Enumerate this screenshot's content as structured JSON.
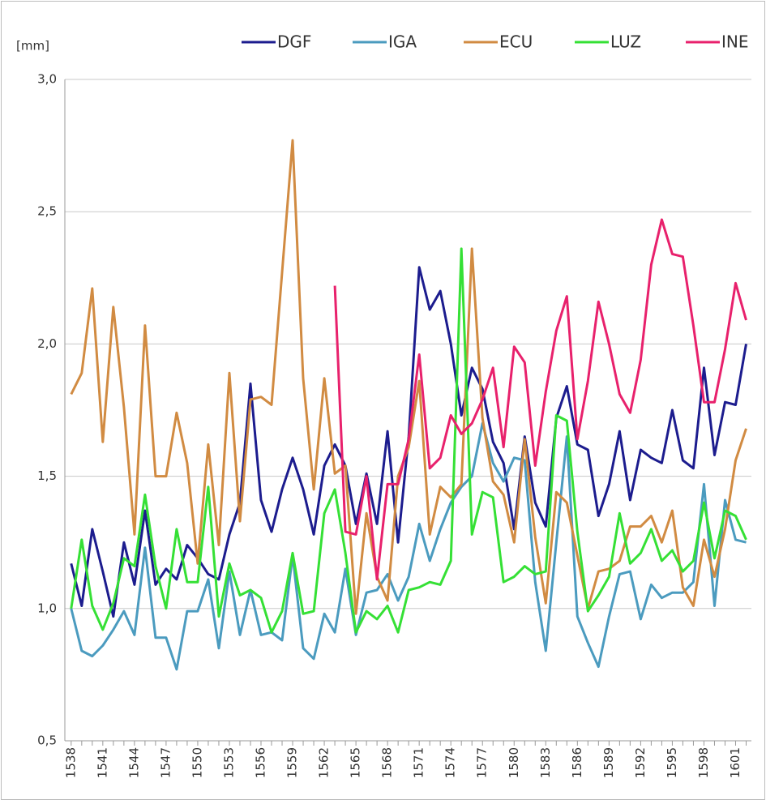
{
  "chart_data": {
    "type": "line",
    "ylabel": "[mm]",
    "x": [
      1538,
      1539,
      1540,
      1541,
      1542,
      1543,
      1544,
      1545,
      1546,
      1547,
      1548,
      1549,
      1550,
      1551,
      1552,
      1553,
      1554,
      1555,
      1556,
      1557,
      1558,
      1559,
      1560,
      1561,
      1562,
      1563,
      1564,
      1565,
      1566,
      1567,
      1568,
      1569,
      1570,
      1571,
      1572,
      1573,
      1574,
      1575,
      1576,
      1577,
      1578,
      1579,
      1580,
      1581,
      1582,
      1583,
      1584,
      1585,
      1586,
      1587,
      1588,
      1589,
      1590,
      1591,
      1592,
      1593,
      1594,
      1595,
      1596,
      1597,
      1598,
      1599,
      1600,
      1601,
      1602
    ],
    "series": [
      {
        "name": "DGF",
        "color": "#1c1c8e",
        "values": [
          1.17,
          1.01,
          1.3,
          1.14,
          0.97,
          1.25,
          1.09,
          1.37,
          1.09,
          1.15,
          1.11,
          1.24,
          1.19,
          1.13,
          1.11,
          1.28,
          1.4,
          1.85,
          1.41,
          1.29,
          1.45,
          1.57,
          1.45,
          1.28,
          1.54,
          1.62,
          1.54,
          1.32,
          1.51,
          1.32,
          1.67,
          1.25,
          1.65,
          2.29,
          2.13,
          2.2,
          2.0,
          1.73,
          1.91,
          1.83,
          1.63,
          1.55,
          1.3,
          1.65,
          1.4,
          1.31,
          1.72,
          1.84,
          1.62,
          1.6,
          1.35,
          1.47,
          1.67,
          1.41,
          1.6,
          1.57,
          1.55,
          1.75,
          1.56,
          1.53,
          1.91,
          1.58,
          1.78,
          1.77,
          2.0
        ]
      },
      {
        "name": "IGA",
        "color": "#4b9bbf",
        "values": [
          1.0,
          0.84,
          0.82,
          0.86,
          0.92,
          0.99,
          0.9,
          1.23,
          0.89,
          0.89,
          0.77,
          0.99,
          0.99,
          1.11,
          0.85,
          1.14,
          0.9,
          1.07,
          0.9,
          0.91,
          0.88,
          1.2,
          0.85,
          0.81,
          0.98,
          0.91,
          1.15,
          0.9,
          1.06,
          1.07,
          1.13,
          1.03,
          1.12,
          1.32,
          1.18,
          1.3,
          1.4,
          1.46,
          1.5,
          1.7,
          1.55,
          1.48,
          1.57,
          1.56,
          1.1,
          0.84,
          1.25,
          1.65,
          0.97,
          0.87,
          0.78,
          0.97,
          1.13,
          1.14,
          0.96,
          1.09,
          1.04,
          1.06,
          1.06,
          1.1,
          1.47,
          1.01,
          1.41,
          1.26,
          1.25
        ]
      },
      {
        "name": "ECU",
        "color": "#d18b42",
        "values": [
          1.81,
          1.89,
          2.21,
          1.63,
          2.14,
          1.76,
          1.28,
          2.07,
          1.5,
          1.5,
          1.74,
          1.55,
          1.17,
          1.62,
          1.24,
          1.89,
          1.33,
          1.79,
          1.8,
          1.77,
          2.27,
          2.77,
          1.87,
          1.45,
          1.87,
          1.51,
          1.54,
          0.98,
          1.36,
          1.12,
          1.03,
          1.5,
          1.61,
          1.86,
          1.28,
          1.46,
          1.42,
          1.47,
          2.36,
          1.72,
          1.48,
          1.43,
          1.25,
          1.64,
          1.27,
          1.02,
          1.44,
          1.4,
          1.2,
          1.0,
          1.14,
          1.15,
          1.18,
          1.31,
          1.31,
          1.35,
          1.25,
          1.37,
          1.08,
          1.01,
          1.26,
          1.12,
          1.3,
          1.56,
          1.68
        ]
      },
      {
        "name": "LUZ",
        "color": "#35e035",
        "values": [
          1.0,
          1.26,
          1.01,
          0.92,
          1.02,
          1.19,
          1.16,
          1.43,
          1.16,
          1.0,
          1.3,
          1.1,
          1.1,
          1.46,
          0.97,
          1.17,
          1.05,
          1.07,
          1.04,
          0.91,
          0.99,
          1.21,
          0.98,
          0.99,
          1.36,
          1.45,
          1.21,
          0.91,
          0.99,
          0.96,
          1.01,
          0.91,
          1.07,
          1.08,
          1.1,
          1.09,
          1.18,
          2.36,
          1.28,
          1.44,
          1.42,
          1.1,
          1.12,
          1.16,
          1.13,
          1.14,
          1.73,
          1.71,
          1.29,
          0.99,
          1.05,
          1.12,
          1.36,
          1.17,
          1.21,
          1.3,
          1.18,
          1.22,
          1.14,
          1.18,
          1.4,
          1.19,
          1.37,
          1.35,
          1.26
        ]
      },
      {
        "name": "INE",
        "color": "#e8216c",
        "values": [
          null,
          null,
          null,
          null,
          null,
          null,
          null,
          null,
          null,
          null,
          null,
          null,
          null,
          null,
          null,
          null,
          null,
          null,
          null,
          null,
          null,
          null,
          null,
          null,
          null,
          2.22,
          1.29,
          1.28,
          1.5,
          1.11,
          1.47,
          1.47,
          1.64,
          1.96,
          1.53,
          1.57,
          1.73,
          1.66,
          1.7,
          1.79,
          1.91,
          1.61,
          1.99,
          1.93,
          1.54,
          1.82,
          2.05,
          2.18,
          1.64,
          1.86,
          2.16,
          2.0,
          1.81,
          1.74,
          1.94,
          2.3,
          2.47,
          2.34,
          2.33,
          2.07,
          1.78,
          1.78,
          1.98,
          2.23,
          2.09
        ]
      }
    ],
    "xlim": [
      1537.4,
      1602.5
    ],
    "xticks": [
      1538,
      1541,
      1544,
      1547,
      1550,
      1553,
      1556,
      1559,
      1562,
      1565,
      1568,
      1571,
      1574,
      1577,
      1580,
      1583,
      1586,
      1589,
      1592,
      1595,
      1598,
      1601
    ],
    "ylim": [
      0.5,
      3.0
    ],
    "yticks": [
      {
        "value": 0.5,
        "label": "0,5"
      },
      {
        "value": 1.0,
        "label": "1,0"
      },
      {
        "value": 1.5,
        "label": "1,5"
      },
      {
        "value": 2.0,
        "label": "2,0"
      },
      {
        "value": 2.5,
        "label": "2,5"
      },
      {
        "value": 3.0,
        "label": "3,0"
      }
    ],
    "grid": true
  }
}
